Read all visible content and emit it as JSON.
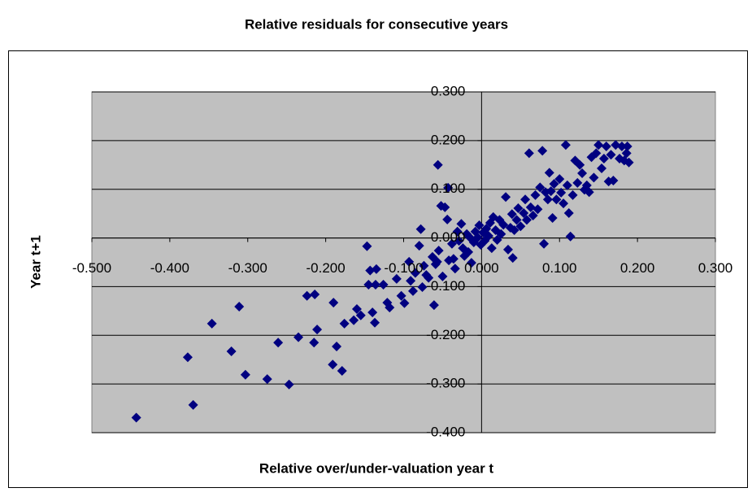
{
  "chart_data": {
    "type": "scatter",
    "title": "Relative residuals for consecutive years",
    "xlabel": "Relative over/under-valuation year t",
    "ylabel": "Year t+1",
    "color": "#000080",
    "background": "#c0c0c0",
    "grid": true,
    "xlim": [
      -0.5,
      0.3
    ],
    "ylim": [
      -0.4,
      0.3
    ],
    "xticks": [
      {
        "value": -0.5,
        "label": "-0.500"
      },
      {
        "value": -0.4,
        "label": "-0.400"
      },
      {
        "value": -0.3,
        "label": "-0.300"
      },
      {
        "value": -0.2,
        "label": "-0.200"
      },
      {
        "value": -0.1,
        "label": "-0.100"
      },
      {
        "value": 0,
        "label": "0.000"
      },
      {
        "value": 0.1,
        "label": "0.100"
      },
      {
        "value": 0.2,
        "label": "0.200"
      },
      {
        "value": 0.3,
        "label": "0.300"
      }
    ],
    "yticks": [
      {
        "value": -0.4,
        "label": "-0.400"
      },
      {
        "value": -0.3,
        "label": "-0.300"
      },
      {
        "value": -0.2,
        "label": "-0.200"
      },
      {
        "value": -0.1,
        "label": "-0.100"
      },
      {
        "value": 0,
        "label": "0.000"
      },
      {
        "value": 0.1,
        "label": "0.100"
      },
      {
        "value": 0.2,
        "label": "0.200"
      },
      {
        "value": 0.3,
        "label": "0.300"
      }
    ],
    "x": [
      -0.443,
      -0.37,
      -0.377,
      -0.346,
      -0.311,
      -0.321,
      -0.303,
      -0.275,
      -0.247,
      -0.261,
      -0.235,
      -0.224,
      -0.214,
      -0.215,
      -0.211,
      -0.19,
      -0.191,
      -0.186,
      -0.179,
      -0.176,
      -0.164,
      -0.16,
      -0.155,
      -0.147,
      -0.145,
      -0.143,
      -0.14,
      -0.137,
      -0.135,
      -0.136,
      -0.126,
      -0.121,
      -0.118,
      -0.109,
      -0.103,
      -0.099,
      -0.093,
      -0.091,
      -0.088,
      -0.085,
      -0.08,
      -0.078,
      -0.076,
      -0.074,
      -0.071,
      -0.068,
      -0.063,
      -0.061,
      -0.059,
      -0.057,
      -0.056,
      -0.055,
      -0.052,
      -0.05,
      -0.047,
      -0.044,
      -0.042,
      -0.043,
      -0.038,
      -0.036,
      -0.034,
      -0.031,
      -0.029,
      -0.026,
      -0.024,
      -0.022,
      -0.019,
      -0.017,
      -0.015,
      -0.013,
      -0.01,
      -0.008,
      -0.005,
      -0.003,
      -0.001,
      0.002,
      0.004,
      0.006,
      0.009,
      0.011,
      0.013,
      0.015,
      0.018,
      0.02,
      0.023,
      0.025,
      0.028,
      0.031,
      0.034,
      0.037,
      0.039,
      0.04,
      0.042,
      0.045,
      0.047,
      0.05,
      0.054,
      0.056,
      0.058,
      0.061,
      0.063,
      0.066,
      0.069,
      0.072,
      0.075,
      0.078,
      0.08,
      0.082,
      0.085,
      0.087,
      0.089,
      0.091,
      0.093,
      0.096,
      0.1,
      0.102,
      0.105,
      0.108,
      0.11,
      0.112,
      0.114,
      0.117,
      0.12,
      0.123,
      0.126,
      0.129,
      0.132,
      0.135,
      0.138,
      0.141,
      0.144,
      0.147,
      0.15,
      0.154,
      0.157,
      0.16,
      0.163,
      0.166,
      0.169,
      0.172,
      0.177,
      0.18,
      0.183,
      0.186,
      0.189,
      0.187
    ],
    "values": [
      -0.369,
      -0.343,
      -0.245,
      -0.176,
      -0.141,
      -0.233,
      -0.281,
      -0.29,
      -0.301,
      -0.215,
      -0.204,
      -0.119,
      -0.116,
      -0.215,
      -0.188,
      -0.133,
      -0.26,
      -0.223,
      -0.273,
      -0.176,
      -0.169,
      -0.146,
      -0.159,
      -0.017,
      -0.096,
      -0.067,
      -0.153,
      -0.174,
      -0.064,
      -0.096,
      -0.096,
      -0.133,
      -0.143,
      -0.084,
      -0.119,
      -0.134,
      -0.049,
      -0.088,
      -0.109,
      -0.072,
      -0.016,
      0.018,
      -0.101,
      -0.057,
      -0.076,
      -0.082,
      -0.039,
      -0.138,
      -0.054,
      -0.049,
      0.15,
      -0.026,
      0.066,
      -0.079,
      0.063,
      0.038,
      -0.046,
      0.103,
      -0.012,
      -0.043,
      -0.063,
      0.013,
      -0.006,
      0.029,
      -0.021,
      -0.037,
      0.008,
      -0.029,
      0.001,
      -0.051,
      -0.009,
      0.013,
      0.001,
      0.026,
      -0.014,
      0.011,
      -0.006,
      0.019,
      0.004,
      0.031,
      -0.021,
      0.043,
      0.016,
      -0.004,
      0.037,
      0.008,
      0.027,
      0.084,
      -0.024,
      0.021,
      0.049,
      -0.041,
      0.016,
      0.037,
      0.061,
      0.024,
      0.051,
      0.079,
      0.037,
      0.174,
      0.063,
      0.046,
      0.088,
      0.059,
      0.104,
      0.179,
      -0.012,
      0.094,
      0.079,
      0.134,
      0.096,
      0.041,
      0.111,
      0.079,
      0.121,
      0.093,
      0.071,
      0.191,
      0.108,
      0.051,
      0.003,
      0.088,
      0.159,
      0.113,
      0.15,
      0.133,
      0.099,
      0.108,
      0.094,
      0.166,
      0.124,
      0.174,
      0.191,
      0.143,
      0.163,
      0.188,
      0.116,
      0.171,
      0.118,
      0.191,
      0.163,
      0.188,
      0.159,
      0.174,
      0.155,
      0.188
    ]
  }
}
